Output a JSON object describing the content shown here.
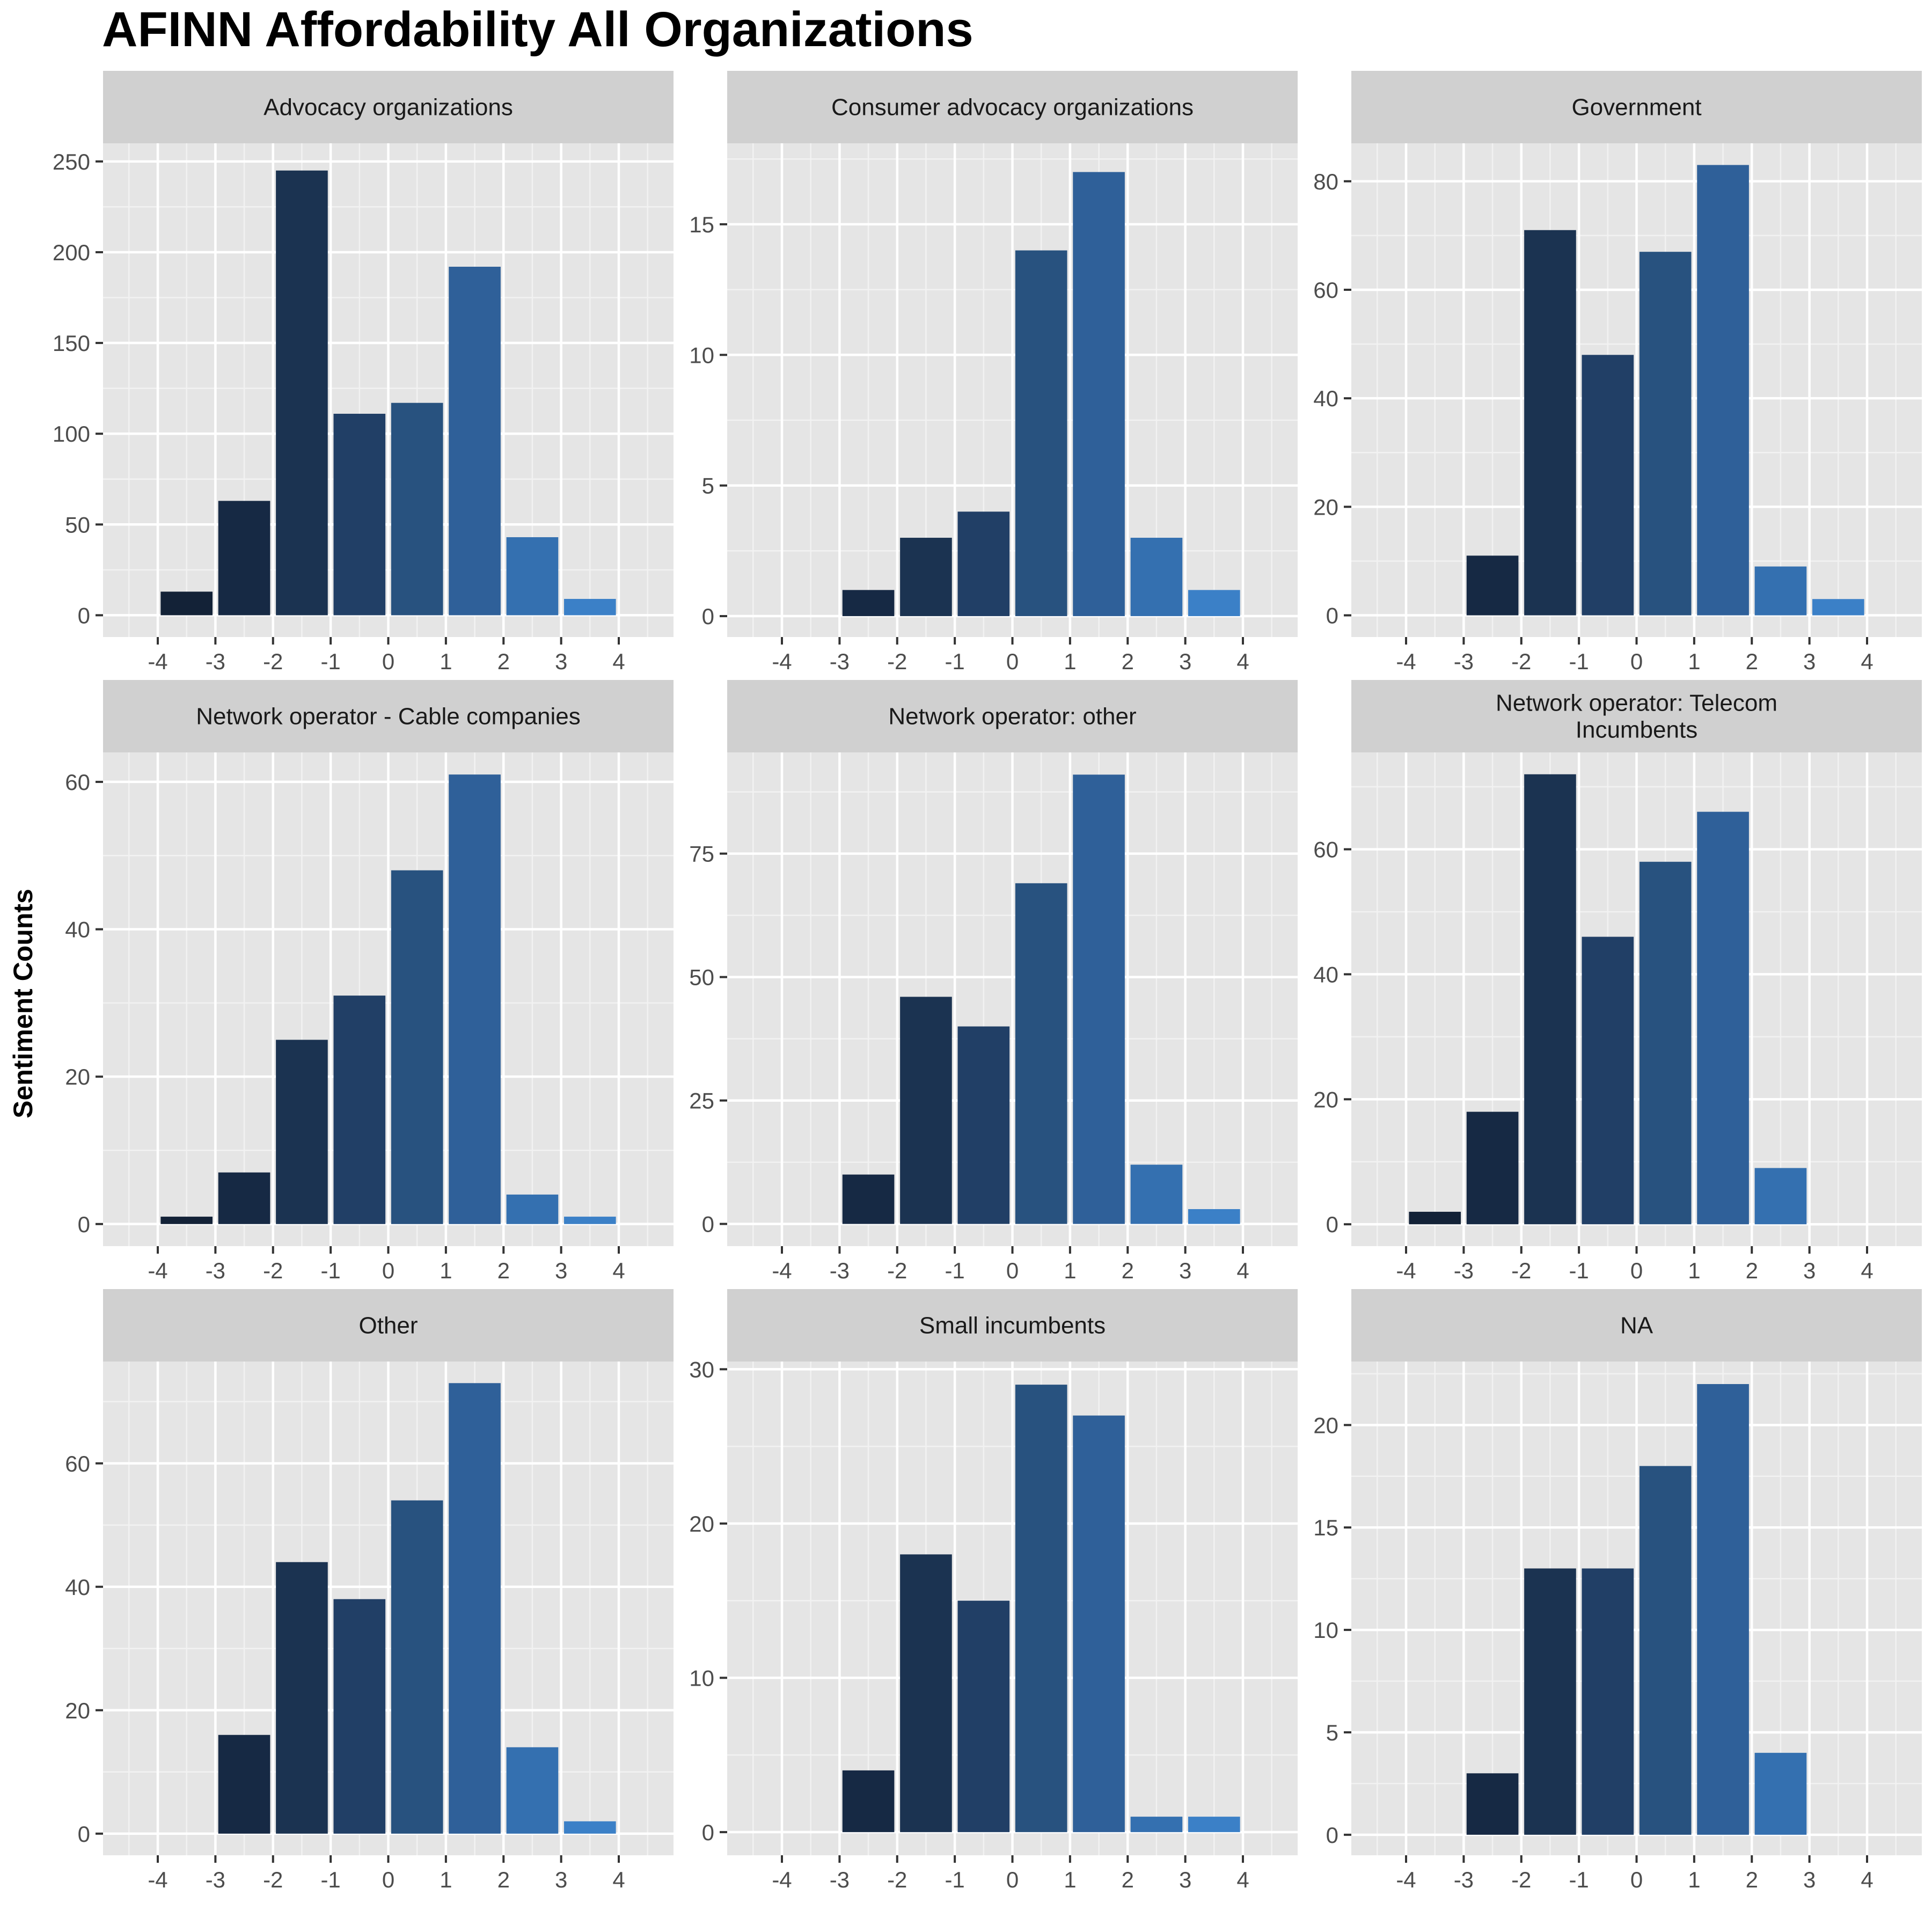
{
  "chart_data": {
    "type": "bar",
    "title": "AFINN Affordability All Organizations",
    "ylabel": "Sentiment Counts",
    "xlabel": "",
    "x": [
      -4,
      -3,
      -2,
      -1,
      0,
      1,
      2,
      3,
      4
    ],
    "x_tick_labels": [
      "-4",
      "-3",
      "-2",
      "-1",
      "0",
      "1",
      "2",
      "3",
      "4"
    ],
    "bar_colors": [
      "#132237",
      "#162944",
      "#1b3351",
      "#213f66",
      "#28527f",
      "#2f6099",
      "#3470b0",
      "#3b80c7",
      "#4591dd"
    ],
    "panel_background": "#e5e5e5",
    "strip_background": "#d0d0d0",
    "grid": true,
    "legend": "none",
    "panels": [
      {
        "title": "Advocacy organizations",
        "x": [
          -3.5,
          -2.5,
          -1.5,
          -0.5,
          0.5,
          1.5,
          2.5,
          3.5
        ],
        "values": [
          13,
          63,
          245,
          111,
          117,
          192,
          43,
          9
        ],
        "ylim": [
          -12,
          260
        ],
        "yticks": [
          0,
          50,
          100,
          150,
          200,
          250
        ]
      },
      {
        "title": "Consumer advocacy organizations",
        "x": [
          -2.5,
          -1.5,
          -0.5,
          0.5,
          1.5,
          2.5,
          3.5
        ],
        "values": [
          1,
          3,
          4,
          14,
          17,
          3,
          1
        ],
        "ylim": [
          -0.8,
          18.1
        ],
        "yticks": [
          0,
          5,
          10,
          15
        ]
      },
      {
        "title": "Government",
        "x": [
          -2.5,
          -1.5,
          -0.5,
          0.5,
          1.5,
          2.5,
          3.5
        ],
        "values": [
          11,
          71,
          48,
          67,
          83,
          9,
          3
        ],
        "ylim": [
          -4,
          87
        ],
        "yticks": [
          0,
          20,
          40,
          60,
          80
        ]
      },
      {
        "title": "Network operator - Cable companies",
        "x": [
          -3.5,
          -2.5,
          -1.5,
          -0.5,
          0.5,
          1.5,
          2.5,
          3.5
        ],
        "values": [
          1,
          7,
          25,
          31,
          48,
          61,
          4,
          1
        ],
        "ylim": [
          -3,
          64
        ],
        "yticks": [
          0,
          20,
          40,
          60
        ]
      },
      {
        "title": "Network operator: other",
        "x": [
          -2.5,
          -1.5,
          -0.5,
          0.5,
          1.5,
          2.5,
          3.5
        ],
        "values": [
          10,
          46,
          40,
          69,
          91,
          12,
          3
        ],
        "ylim": [
          -4.5,
          95.5
        ],
        "yticks": [
          0,
          25,
          50,
          75
        ]
      },
      {
        "title": "Network operator: Telecom\nIncumbents",
        "x": [
          -3.5,
          -2.5,
          -1.5,
          -0.5,
          0.5,
          1.5,
          2.5
        ],
        "values": [
          2,
          18,
          72,
          46,
          58,
          66,
          9
        ],
        "ylim": [
          -3.5,
          75.5
        ],
        "yticks": [
          0,
          20,
          40,
          60
        ]
      },
      {
        "title": "Other",
        "x": [
          -2.5,
          -1.5,
          -0.5,
          0.5,
          1.5,
          2.5,
          3.5
        ],
        "values": [
          16,
          44,
          38,
          54,
          73,
          14,
          2
        ],
        "ylim": [
          -3.5,
          76.5
        ],
        "yticks": [
          0,
          20,
          40,
          60
        ]
      },
      {
        "title": "Small incumbents",
        "x": [
          -2.5,
          -1.5,
          -0.5,
          0.5,
          1.5,
          2.5,
          3.5
        ],
        "values": [
          4,
          18,
          15,
          29,
          27,
          1,
          1
        ],
        "ylim": [
          -1.5,
          30.5
        ],
        "yticks": [
          0,
          10,
          20,
          30
        ]
      },
      {
        "title": "NA",
        "x": [
          -2.5,
          -1.5,
          -0.5,
          0.5,
          1.5,
          2.5
        ],
        "values": [
          3,
          13,
          13,
          18,
          22,
          4
        ],
        "ylim": [
          -1,
          23.1
        ],
        "yticks": [
          0,
          5,
          10,
          15,
          20
        ]
      }
    ]
  }
}
